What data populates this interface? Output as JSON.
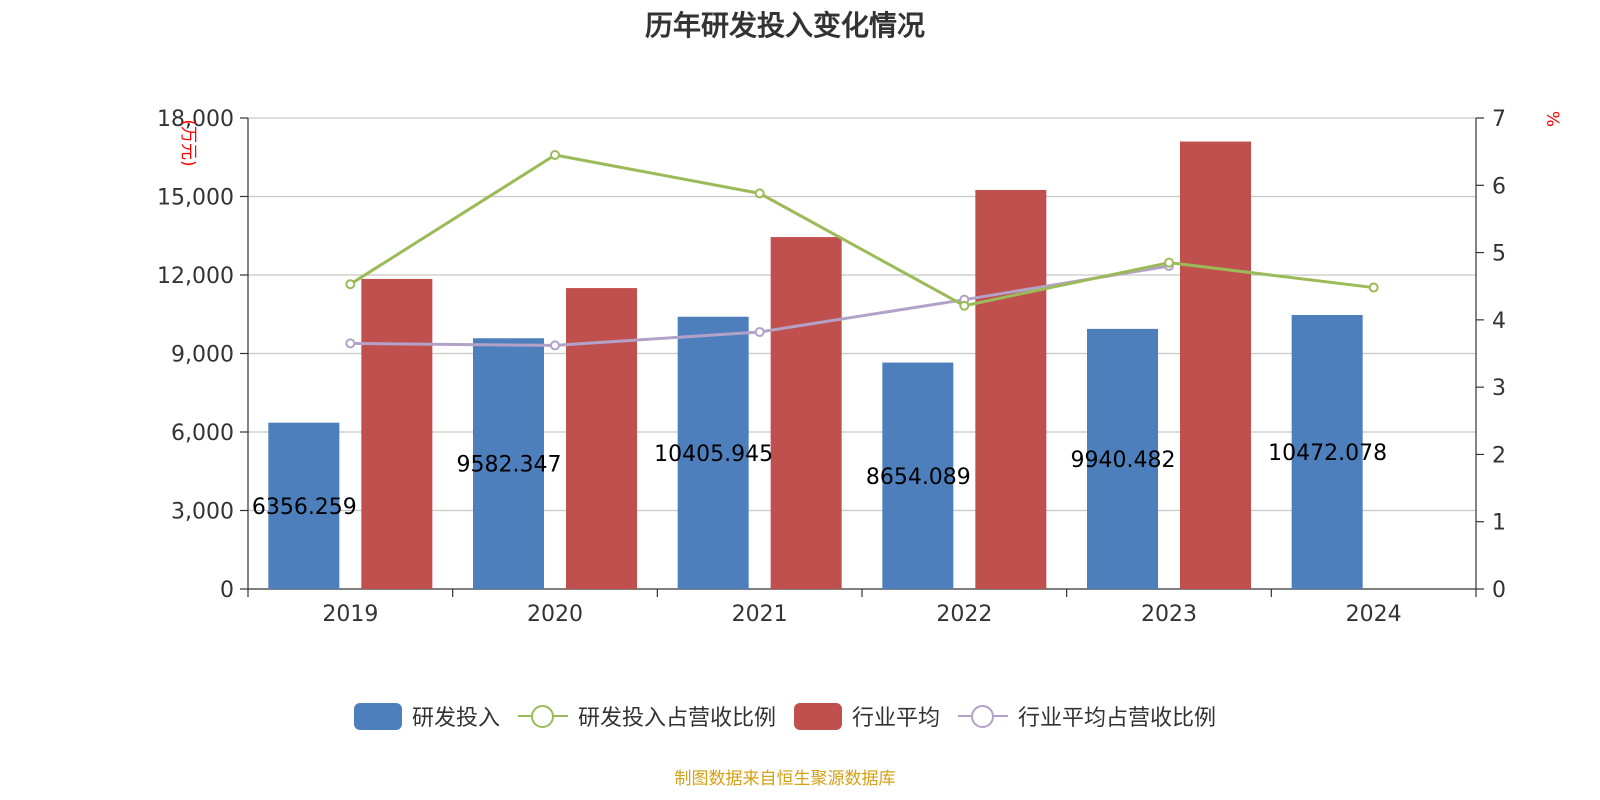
{
  "title": "历年研发投入变化情况",
  "source": "制图数据来自恒生聚源数据库",
  "colors": {
    "invest": "#4e7fbd",
    "industry": "#c0504d",
    "ratio": "#9bbb59",
    "industry_ratio": "#b3a2c7",
    "axis_unit": "#ff0000"
  },
  "chart_data": {
    "type": "bar",
    "categories": [
      "2019",
      "2020",
      "2021",
      "2022",
      "2023",
      "2024"
    ],
    "y_left": {
      "label": "(万元)",
      "ylim": [
        0,
        18000
      ],
      "ticks": [
        "0",
        "3,000",
        "6,000",
        "9,000",
        "12,000",
        "15,000",
        "18,000"
      ]
    },
    "y_right": {
      "label": "%",
      "ylim": [
        0,
        7
      ],
      "ticks": [
        "0",
        "1",
        "2",
        "3",
        "4",
        "5",
        "6",
        "7"
      ]
    },
    "grid": true,
    "legend_position": "bottom",
    "series": [
      {
        "name": "研发投入",
        "type": "bar",
        "axis": "left",
        "values": [
          6356.259,
          9582.347,
          10405.945,
          8654.089,
          9940.482,
          10472.078
        ],
        "labels": [
          "6356.259",
          "9582.347",
          "10405.945",
          "8654.089",
          "9940.482",
          "10472.078"
        ]
      },
      {
        "name": "研发投入占营收比例",
        "type": "line",
        "axis": "right",
        "values": [
          4.53,
          6.45,
          5.88,
          4.21,
          4.85,
          4.48
        ]
      },
      {
        "name": "行业平均",
        "type": "bar",
        "axis": "left",
        "values": [
          11850,
          11500,
          13450,
          15250,
          17100,
          null
        ]
      },
      {
        "name": "行业平均占营收比例",
        "type": "line",
        "axis": "right",
        "values": [
          3.65,
          3.62,
          3.82,
          4.3,
          4.8,
          null
        ]
      }
    ]
  }
}
